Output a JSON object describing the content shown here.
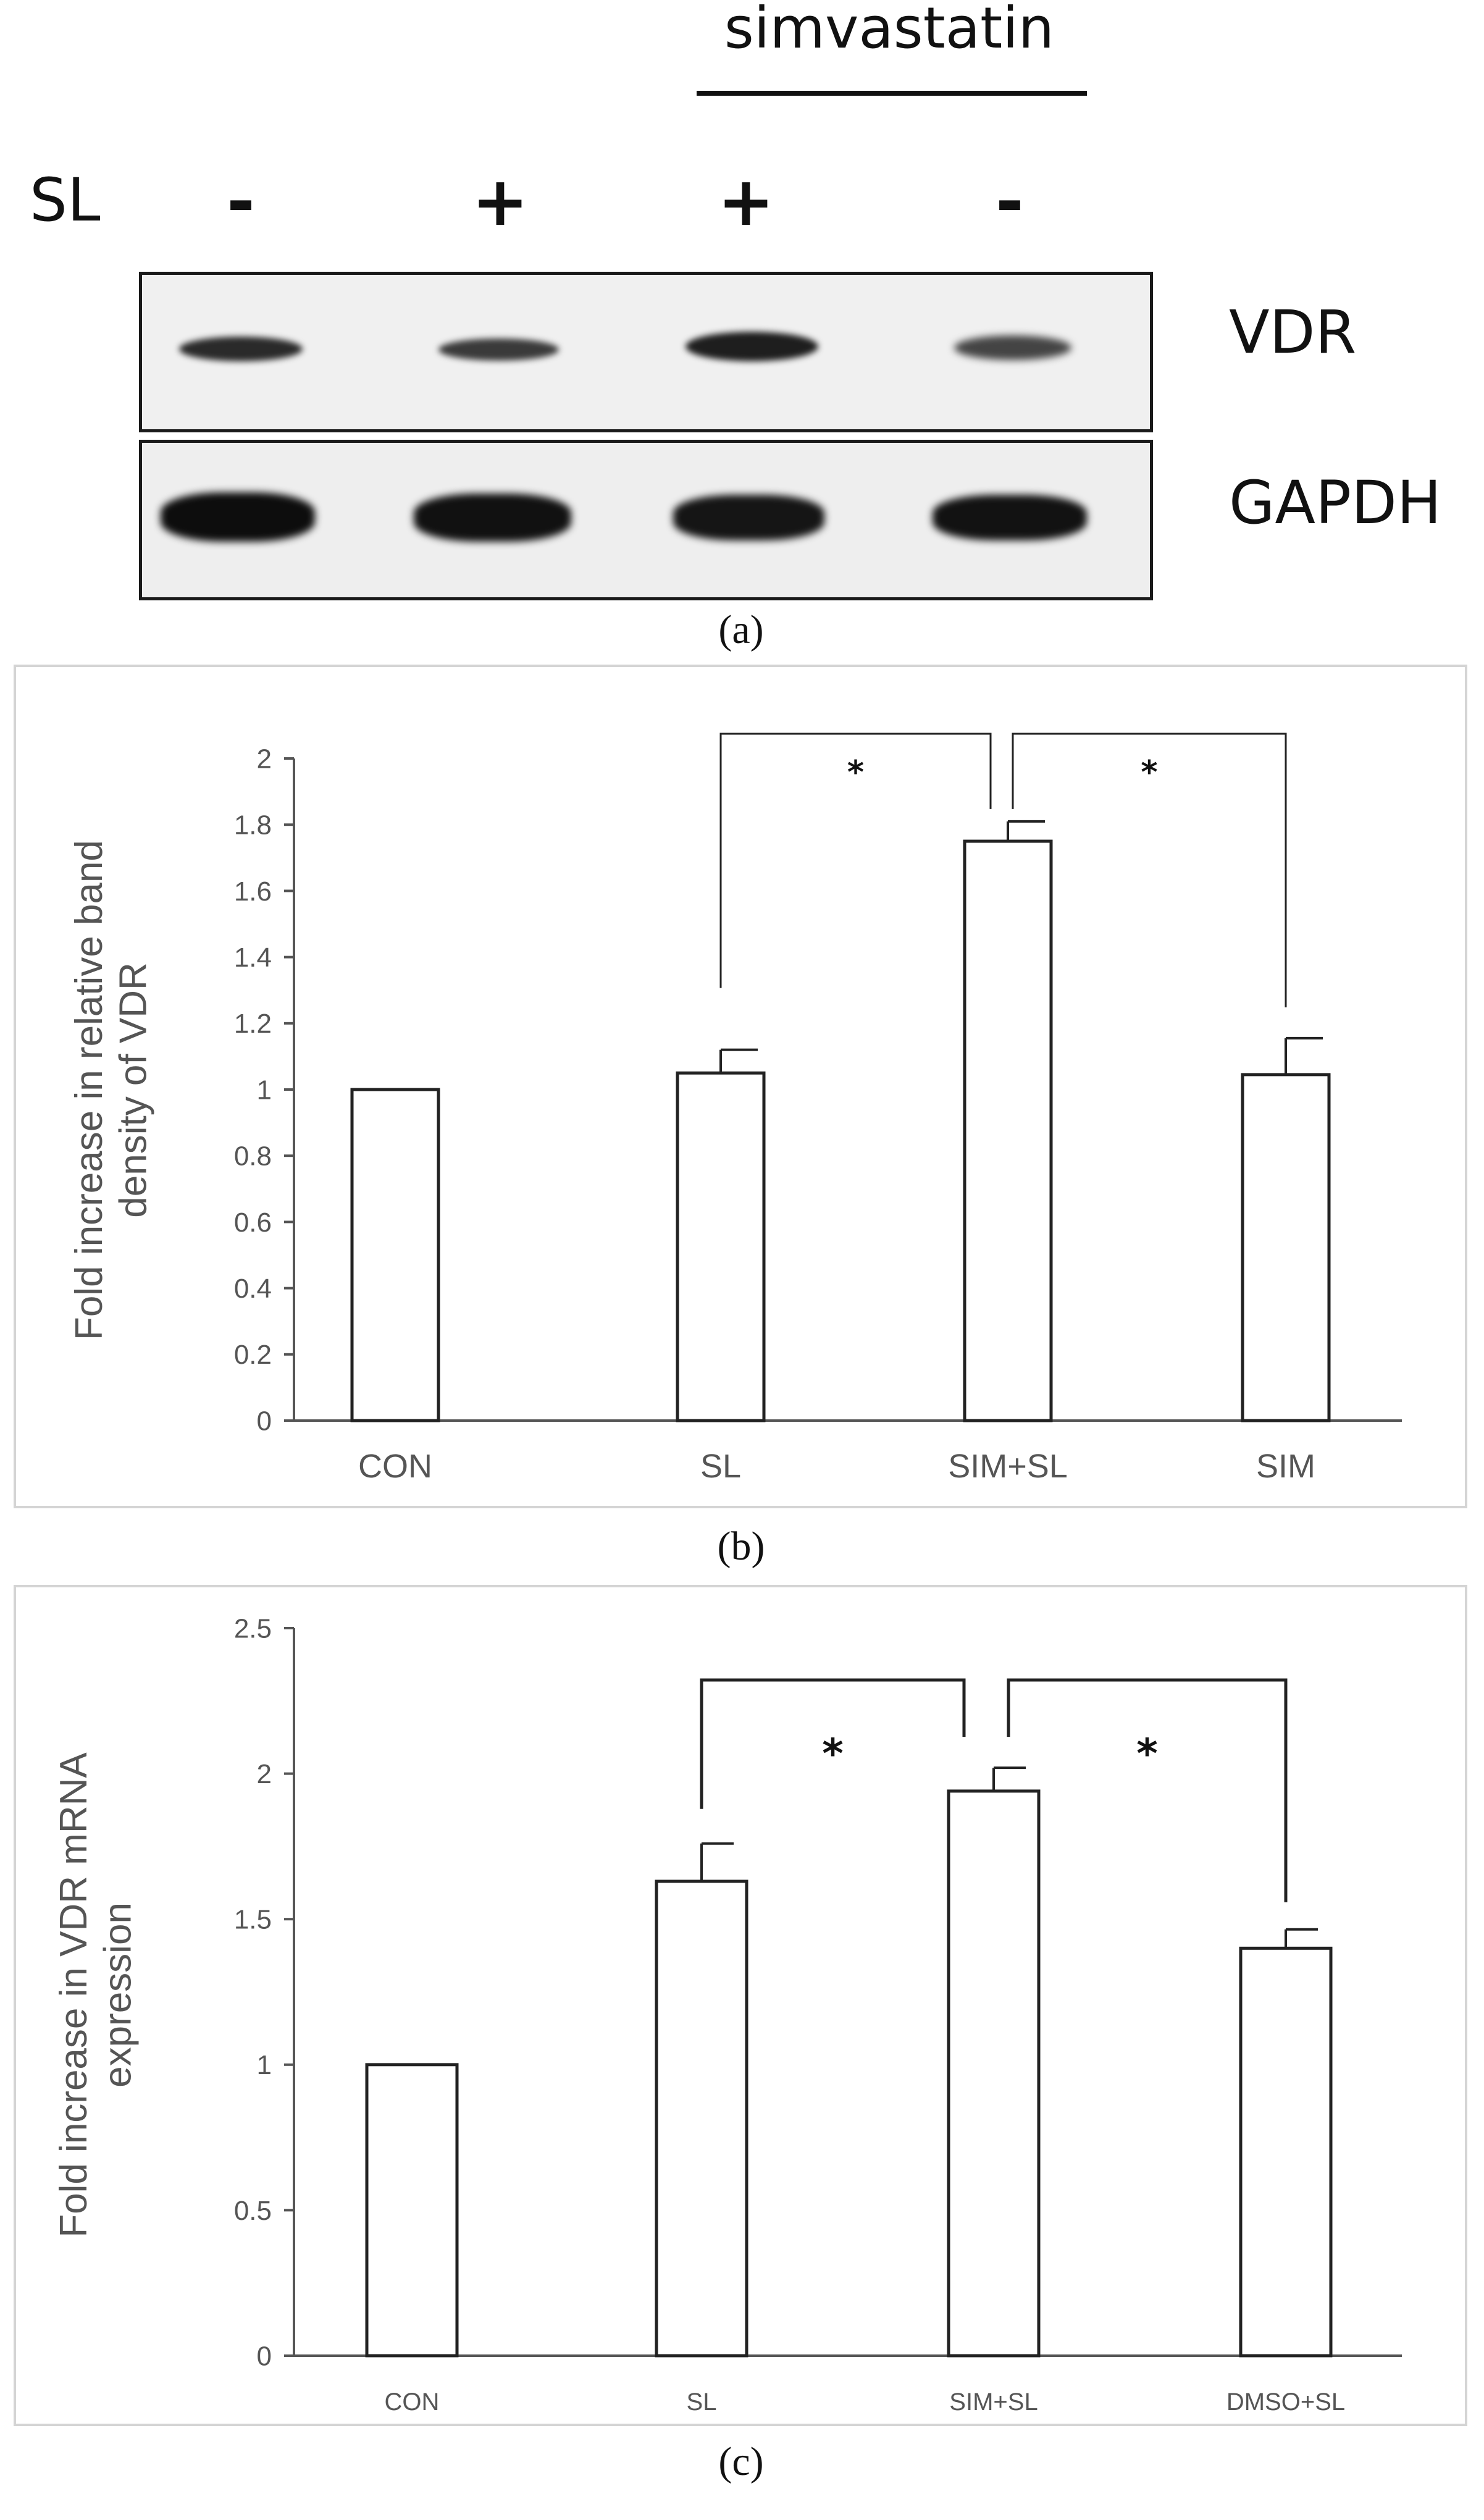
{
  "panel_a": {
    "treatment_label": "simvastatin",
    "row_label": "SL",
    "lane_signs": [
      "-",
      "+",
      "+",
      "-"
    ],
    "band_labels": [
      "VDR",
      "GAPDH"
    ],
    "caption": "(a)"
  },
  "chart_data": [
    {
      "type": "bar",
      "panel": "b",
      "caption": "(b)",
      "categories": [
        "CON",
        "SL",
        "SIM+SL",
        "SIM"
      ],
      "values": [
        1.0,
        1.05,
        1.75,
        1.045
      ],
      "errors": [
        0.0,
        0.07,
        0.06,
        0.11
      ],
      "ylabel": "Fold increase in relative band density of VDR",
      "ylabel_lines": [
        "Fold increase in relative band",
        "density of VDR"
      ],
      "xlabel": "",
      "ylim": [
        0,
        2
      ],
      "yticks": [
        0,
        0.2,
        0.4,
        0.6,
        0.8,
        1,
        1.2,
        1.4,
        1.6,
        1.8,
        2
      ],
      "ytick_labels": [
        "0",
        "0.2",
        "0.4",
        "0.6",
        "0.8",
        "1",
        "1.2",
        "1.4",
        "1.6",
        "1.8",
        "2"
      ],
      "grid": false,
      "significance": [
        {
          "from": "SL",
          "to": "SIM+SL",
          "label": "*"
        },
        {
          "from": "SIM+SL",
          "to": "SIM",
          "label": "*"
        }
      ]
    },
    {
      "type": "bar",
      "panel": "c",
      "caption": "(c)",
      "categories": [
        "CON",
        "SL",
        "SIM+SL",
        "DMSO+SL"
      ],
      "values": [
        1.0,
        1.63,
        1.94,
        1.4
      ],
      "errors": [
        0.0,
        0.13,
        0.08,
        0.065
      ],
      "ylabel": "Fold increase in VDR mRNA expression",
      "ylabel_lines": [
        "Fold increase in VDR mRNA",
        "expression"
      ],
      "xlabel": "",
      "ylim": [
        0,
        2.5
      ],
      "yticks": [
        0,
        0.5,
        1,
        1.5,
        2,
        2.5
      ],
      "ytick_labels": [
        "0",
        "0.5",
        "1",
        "1.5",
        "2",
        "2.5"
      ],
      "grid": false,
      "significance": [
        {
          "from": "SL",
          "to": "SIM+SL",
          "label": "*"
        },
        {
          "from": "SIM+SL",
          "to": "DMSO+SL",
          "label": "*"
        }
      ]
    }
  ]
}
